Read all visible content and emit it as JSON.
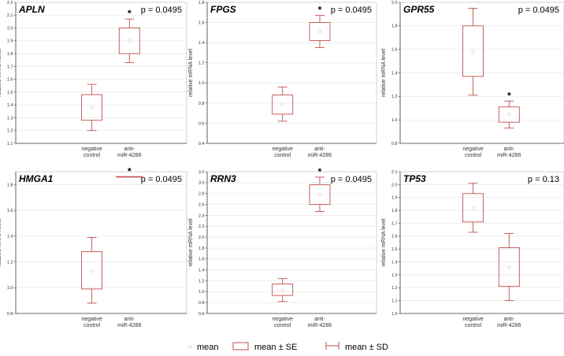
{
  "colors": {
    "box": "#c0504d",
    "mean_marker": "#e8c9c8",
    "grid": "#e6e6e6",
    "frame": "#c8c8c8",
    "axis": "#444444"
  },
  "legend": {
    "mean": "mean",
    "se": "mean ± SE",
    "sd": "mean ± SD"
  },
  "chart_data": [
    {
      "type": "box",
      "title": "APLN",
      "p_value": "p = 0.0495",
      "ylabel": "relative mRNA level",
      "ylim": [
        1.1,
        2.2
      ],
      "ticks": [
        "1.1",
        "1.2",
        "1.3",
        "1.4",
        "1.5",
        "1.6",
        "1.7",
        "1.8",
        "1.9",
        "2.0",
        "2.1",
        "2.2"
      ],
      "categories": [
        [
          "negative",
          "control"
        ],
        [
          "anti-",
          "miR-4286"
        ]
      ],
      "series": [
        {
          "name": "negative control",
          "mean": 1.38,
          "se_low": 1.28,
          "se_high": 1.48,
          "sd_low": 1.2,
          "sd_high": 1.56
        },
        {
          "name": "anti-miR-4286",
          "mean": 1.9,
          "se_low": 1.8,
          "se_high": 2.0,
          "sd_low": 1.73,
          "sd_high": 2.07
        }
      ],
      "star": "*"
    },
    {
      "type": "box",
      "title": "FPGS",
      "p_value": "p = 0.0495",
      "ylabel": "relative mRNA level",
      "ylim": [
        0.4,
        1.8
      ],
      "ticks": [
        "0.4",
        "0.6",
        "0.8",
        "1.0",
        "1.2",
        "1.4",
        "1.6",
        "1.8"
      ],
      "categories": [
        [
          "negative",
          "control"
        ],
        [
          "anti-",
          "miR-4286"
        ]
      ],
      "series": [
        {
          "name": "negative control",
          "mean": 0.79,
          "se_low": 0.69,
          "se_high": 0.88,
          "sd_low": 0.62,
          "sd_high": 0.96
        },
        {
          "name": "anti-miR-4286",
          "mean": 1.51,
          "se_low": 1.42,
          "se_high": 1.6,
          "sd_low": 1.35,
          "sd_high": 1.67
        }
      ],
      "star": "*"
    },
    {
      "type": "box",
      "title": "GPR55",
      "p_value": "p = 0.0495",
      "ylabel": "relative mRNA level",
      "ylim": [
        0.8,
        2.0
      ],
      "ticks": [
        "0.8",
        "1.0",
        "1.2",
        "1.4",
        "1.6",
        "1.8",
        "2.0"
      ],
      "categories": [
        [
          "negative",
          "control"
        ],
        [
          "anti-",
          "miR-4286"
        ]
      ],
      "series": [
        {
          "name": "negative control",
          "mean": 1.58,
          "se_low": 1.37,
          "se_high": 1.8,
          "sd_low": 1.21,
          "sd_high": 1.95
        },
        {
          "name": "anti-miR-4286",
          "mean": 1.05,
          "se_low": 0.98,
          "se_high": 1.11,
          "sd_low": 0.93,
          "sd_high": 1.16
        }
      ],
      "star": "*"
    },
    {
      "type": "box",
      "title": "HMGA1",
      "p_value": "p = 0.0495",
      "ylabel": "relative mRNA level",
      "ylim": [
        0.8,
        1.9
      ],
      "ticks": [
        "0.8",
        "1.0",
        "1.2",
        "1.4",
        "1.6",
        "1.8"
      ],
      "categories": [
        [
          "negative",
          "control"
        ],
        [
          "anti-",
          "miR-4286"
        ]
      ],
      "series": [
        {
          "name": "negative control",
          "mean": 1.13,
          "se_low": 0.99,
          "se_high": 1.28,
          "sd_low": 0.88,
          "sd_high": 1.39
        },
        {
          "name": "anti-miR-4286",
          "mean": 1.86,
          "se_low": 1.86,
          "se_high": 1.86,
          "sd_low": 1.86,
          "sd_high": 1.86
        }
      ],
      "star": "*"
    },
    {
      "type": "box",
      "title": "RRN3",
      "p_value": "p = 0.0495",
      "ylabel": "relative mRNA level",
      "ylim": [
        0.6,
        3.2
      ],
      "ticks": [
        "0.6",
        "0.8",
        "1.0",
        "1.2",
        "1.4",
        "1.6",
        "1.8",
        "2.0",
        "2.2",
        "2.4",
        "2.6",
        "2.8",
        "3.0",
        "3.2"
      ],
      "categories": [
        [
          "negative",
          "control"
        ],
        [
          "anti-",
          "miR-4286"
        ]
      ],
      "series": [
        {
          "name": "negative control",
          "mean": 1.03,
          "se_low": 0.93,
          "se_high": 1.14,
          "sd_low": 0.82,
          "sd_high": 1.24
        },
        {
          "name": "anti-miR-4286",
          "mean": 2.78,
          "se_low": 2.6,
          "se_high": 2.96,
          "sd_low": 2.47,
          "sd_high": 3.1
        }
      ],
      "star": "*"
    },
    {
      "type": "box",
      "title": "TP53",
      "p_value": "p = 0.13",
      "ylabel": "relative mRNA level",
      "ylim": [
        1.0,
        2.1
      ],
      "ticks": [
        "1.0",
        "1.1",
        "1.2",
        "1.3",
        "1.4",
        "1.5",
        "1.6",
        "1.7",
        "1.8",
        "1.9",
        "2.0",
        "2.1"
      ],
      "categories": [
        [
          "negative",
          "control"
        ],
        [
          "anti-",
          "miR-4286"
        ]
      ],
      "series": [
        {
          "name": "negative control",
          "mean": 1.82,
          "se_low": 1.71,
          "se_high": 1.93,
          "sd_low": 1.63,
          "sd_high": 2.01
        },
        {
          "name": "anti-miR-4286",
          "mean": 1.36,
          "se_low": 1.21,
          "se_high": 1.51,
          "sd_low": 1.1,
          "sd_high": 1.62
        }
      ],
      "star": ""
    }
  ]
}
